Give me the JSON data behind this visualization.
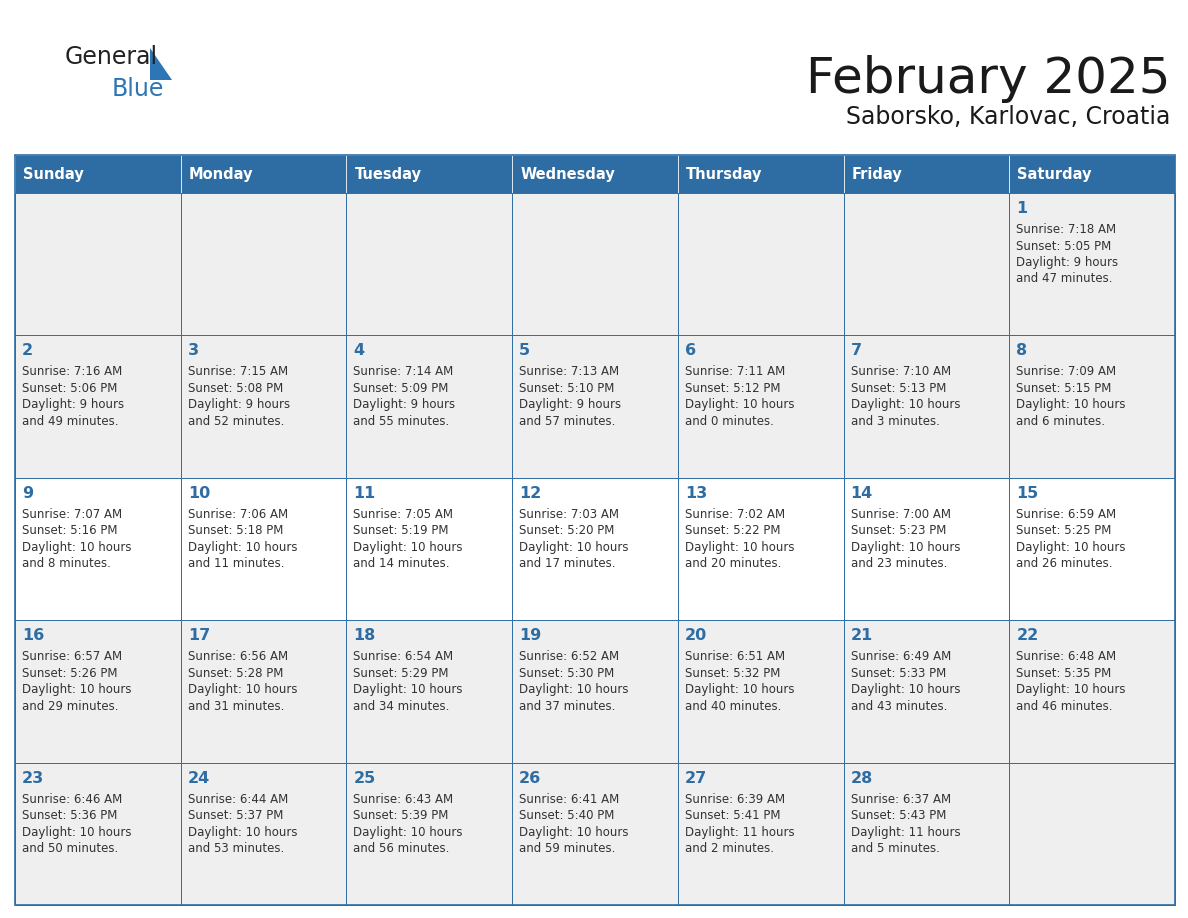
{
  "title": "February 2025",
  "subtitle": "Saborsko, Karlovac, Croatia",
  "days_of_week": [
    "Sunday",
    "Monday",
    "Tuesday",
    "Wednesday",
    "Thursday",
    "Friday",
    "Saturday"
  ],
  "header_bg": "#2e6da4",
  "header_text": "#ffffff",
  "cell_bg_gray": "#efefef",
  "cell_bg_white": "#ffffff",
  "cell_border": "#2e6da4",
  "day_number_color": "#2e6da4",
  "info_text_color": "#333333",
  "title_color": "#1a1a1a",
  "subtitle_color": "#1a1a1a",
  "row_bg": [
    "gray",
    "white",
    "gray",
    "white",
    "gray"
  ],
  "weeks": [
    [
      {
        "day": null,
        "info": ""
      },
      {
        "day": null,
        "info": ""
      },
      {
        "day": null,
        "info": ""
      },
      {
        "day": null,
        "info": ""
      },
      {
        "day": null,
        "info": ""
      },
      {
        "day": null,
        "info": ""
      },
      {
        "day": 1,
        "info": "Sunrise: 7:18 AM\nSunset: 5:05 PM\nDaylight: 9 hours\nand 47 minutes."
      }
    ],
    [
      {
        "day": 2,
        "info": "Sunrise: 7:16 AM\nSunset: 5:06 PM\nDaylight: 9 hours\nand 49 minutes."
      },
      {
        "day": 3,
        "info": "Sunrise: 7:15 AM\nSunset: 5:08 PM\nDaylight: 9 hours\nand 52 minutes."
      },
      {
        "day": 4,
        "info": "Sunrise: 7:14 AM\nSunset: 5:09 PM\nDaylight: 9 hours\nand 55 minutes."
      },
      {
        "day": 5,
        "info": "Sunrise: 7:13 AM\nSunset: 5:10 PM\nDaylight: 9 hours\nand 57 minutes."
      },
      {
        "day": 6,
        "info": "Sunrise: 7:11 AM\nSunset: 5:12 PM\nDaylight: 10 hours\nand 0 minutes."
      },
      {
        "day": 7,
        "info": "Sunrise: 7:10 AM\nSunset: 5:13 PM\nDaylight: 10 hours\nand 3 minutes."
      },
      {
        "day": 8,
        "info": "Sunrise: 7:09 AM\nSunset: 5:15 PM\nDaylight: 10 hours\nand 6 minutes."
      }
    ],
    [
      {
        "day": 9,
        "info": "Sunrise: 7:07 AM\nSunset: 5:16 PM\nDaylight: 10 hours\nand 8 minutes."
      },
      {
        "day": 10,
        "info": "Sunrise: 7:06 AM\nSunset: 5:18 PM\nDaylight: 10 hours\nand 11 minutes."
      },
      {
        "day": 11,
        "info": "Sunrise: 7:05 AM\nSunset: 5:19 PM\nDaylight: 10 hours\nand 14 minutes."
      },
      {
        "day": 12,
        "info": "Sunrise: 7:03 AM\nSunset: 5:20 PM\nDaylight: 10 hours\nand 17 minutes."
      },
      {
        "day": 13,
        "info": "Sunrise: 7:02 AM\nSunset: 5:22 PM\nDaylight: 10 hours\nand 20 minutes."
      },
      {
        "day": 14,
        "info": "Sunrise: 7:00 AM\nSunset: 5:23 PM\nDaylight: 10 hours\nand 23 minutes."
      },
      {
        "day": 15,
        "info": "Sunrise: 6:59 AM\nSunset: 5:25 PM\nDaylight: 10 hours\nand 26 minutes."
      }
    ],
    [
      {
        "day": 16,
        "info": "Sunrise: 6:57 AM\nSunset: 5:26 PM\nDaylight: 10 hours\nand 29 minutes."
      },
      {
        "day": 17,
        "info": "Sunrise: 6:56 AM\nSunset: 5:28 PM\nDaylight: 10 hours\nand 31 minutes."
      },
      {
        "day": 18,
        "info": "Sunrise: 6:54 AM\nSunset: 5:29 PM\nDaylight: 10 hours\nand 34 minutes."
      },
      {
        "day": 19,
        "info": "Sunrise: 6:52 AM\nSunset: 5:30 PM\nDaylight: 10 hours\nand 37 minutes."
      },
      {
        "day": 20,
        "info": "Sunrise: 6:51 AM\nSunset: 5:32 PM\nDaylight: 10 hours\nand 40 minutes."
      },
      {
        "day": 21,
        "info": "Sunrise: 6:49 AM\nSunset: 5:33 PM\nDaylight: 10 hours\nand 43 minutes."
      },
      {
        "day": 22,
        "info": "Sunrise: 6:48 AM\nSunset: 5:35 PM\nDaylight: 10 hours\nand 46 minutes."
      }
    ],
    [
      {
        "day": 23,
        "info": "Sunrise: 6:46 AM\nSunset: 5:36 PM\nDaylight: 10 hours\nand 50 minutes."
      },
      {
        "day": 24,
        "info": "Sunrise: 6:44 AM\nSunset: 5:37 PM\nDaylight: 10 hours\nand 53 minutes."
      },
      {
        "day": 25,
        "info": "Sunrise: 6:43 AM\nSunset: 5:39 PM\nDaylight: 10 hours\nand 56 minutes."
      },
      {
        "day": 26,
        "info": "Sunrise: 6:41 AM\nSunset: 5:40 PM\nDaylight: 10 hours\nand 59 minutes."
      },
      {
        "day": 27,
        "info": "Sunrise: 6:39 AM\nSunset: 5:41 PM\nDaylight: 11 hours\nand 2 minutes."
      },
      {
        "day": 28,
        "info": "Sunrise: 6:37 AM\nSunset: 5:43 PM\nDaylight: 11 hours\nand 5 minutes."
      },
      {
        "day": null,
        "info": ""
      }
    ]
  ]
}
